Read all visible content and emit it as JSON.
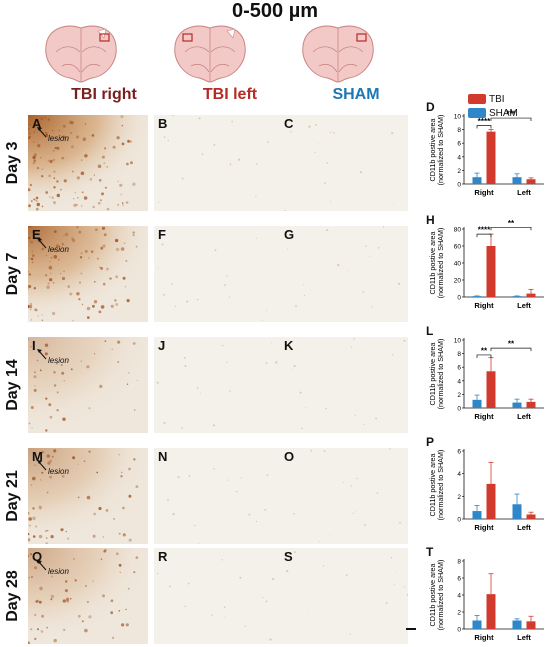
{
  "figure": {
    "title": "0-500 µm",
    "columns": [
      {
        "label": "TBI right",
        "color": "#7a1f1f",
        "box_side": "right"
      },
      {
        "label": "TBI left",
        "color": "#b52b25",
        "box_side": "left"
      },
      {
        "label": "SHAM",
        "color": "#1b78b4",
        "box_side": "right"
      }
    ],
    "rows": [
      {
        "label": "Day 3",
        "panels": [
          "A",
          "B",
          "C"
        ],
        "stain": 0.95
      },
      {
        "label": "Day 7",
        "panels": [
          "E",
          "F",
          "G"
        ],
        "stain": 0.85
      },
      {
        "label": "Day 14",
        "panels": [
          "I",
          "J",
          "K"
        ],
        "stain": 0.35
      },
      {
        "label": "Day 21",
        "panels": [
          "M",
          "N",
          "O"
        ],
        "stain": 0.5
      },
      {
        "label": "Day 28",
        "panels": [
          "Q",
          "R",
          "S"
        ],
        "stain": 0.45
      }
    ],
    "lesion_label": "lesion",
    "legend": [
      {
        "name": "TBI",
        "color": "#d23a2e"
      },
      {
        "name": "SHAM",
        "color": "#2f86c8"
      }
    ]
  },
  "chart_data": [
    {
      "panel": "D",
      "type": "bar",
      "categories": [
        "Right",
        "Left"
      ],
      "ylabel": "CD11b postive area\n(normalized to SHAM)",
      "ylim": [
        0,
        10
      ],
      "yticks": [
        0,
        2,
        4,
        6,
        8,
        10
      ],
      "series": [
        {
          "name": "SHAM",
          "values": [
            1.0,
            1.0
          ],
          "err": [
            0.6,
            0.5
          ]
        },
        {
          "name": "TBI",
          "values": [
            7.7,
            0.7
          ],
          "err": [
            0.3,
            0.2
          ]
        }
      ],
      "sig": [
        {
          "label": "****",
          "from": [
            0,
            0
          ],
          "to": [
            0,
            1
          ],
          "level": 8.6
        },
        {
          "label": "***",
          "from": [
            0,
            1
          ],
          "to": [
            1,
            1
          ],
          "level": 9.7
        }
      ]
    },
    {
      "panel": "H",
      "type": "bar",
      "categories": [
        "Right",
        "Left"
      ],
      "ylabel": "CD11b postive area\n(normalized to SHAM)",
      "ylim": [
        0,
        80
      ],
      "yticks": [
        0,
        20,
        40,
        60,
        80
      ],
      "series": [
        {
          "name": "SHAM",
          "values": [
            1.0,
            1.0
          ],
          "err": [
            0.3,
            0.3
          ]
        },
        {
          "name": "TBI",
          "values": [
            60,
            4
          ],
          "err": [
            14,
            5
          ]
        }
      ],
      "sig": [
        {
          "label": "****",
          "from": [
            0,
            0
          ],
          "to": [
            0,
            1
          ],
          "level": 74
        },
        {
          "label": "**",
          "from": [
            0,
            1
          ],
          "to": [
            1,
            1
          ],
          "level": 82
        }
      ]
    },
    {
      "panel": "L",
      "type": "bar",
      "categories": [
        "Right",
        "Left"
      ],
      "ylabel": "CD11b postive area\n(normalized to SHAM)",
      "ylim": [
        0,
        10
      ],
      "yticks": [
        0,
        2,
        4,
        6,
        8,
        10
      ],
      "series": [
        {
          "name": "SHAM",
          "values": [
            1.2,
            0.8
          ],
          "err": [
            0.7,
            0.5
          ]
        },
        {
          "name": "TBI",
          "values": [
            5.4,
            0.9
          ],
          "err": [
            2.0,
            0.4
          ]
        }
      ],
      "sig": [
        {
          "label": "**",
          "from": [
            0,
            0
          ],
          "to": [
            0,
            1
          ],
          "level": 7.8
        },
        {
          "label": "**",
          "from": [
            0,
            1
          ],
          "to": [
            1,
            1
          ],
          "level": 8.8
        }
      ]
    },
    {
      "panel": "P",
      "type": "bar",
      "categories": [
        "Right",
        "Left"
      ],
      "ylabel": "CD11b postive area\n(normalized to SHAM)",
      "ylim": [
        0,
        6
      ],
      "yticks": [
        0,
        2,
        4,
        6
      ],
      "series": [
        {
          "name": "SHAM",
          "values": [
            0.7,
            1.3
          ],
          "err": [
            0.5,
            0.9
          ]
        },
        {
          "name": "TBI",
          "values": [
            3.1,
            0.4
          ],
          "err": [
            1.9,
            0.2
          ]
        }
      ],
      "sig": []
    },
    {
      "panel": "T",
      "type": "bar",
      "categories": [
        "Right",
        "Left"
      ],
      "ylabel": "CD11b postive area\n(normalized to SHAM)",
      "ylim": [
        0,
        8
      ],
      "yticks": [
        0,
        2,
        4,
        6,
        8
      ],
      "series": [
        {
          "name": "SHAM",
          "values": [
            1.0,
            1.0
          ],
          "err": [
            0.6,
            0.2
          ]
        },
        {
          "name": "TBI",
          "values": [
            4.1,
            0.9
          ],
          "err": [
            2.4,
            0.6
          ]
        }
      ],
      "sig": []
    }
  ]
}
